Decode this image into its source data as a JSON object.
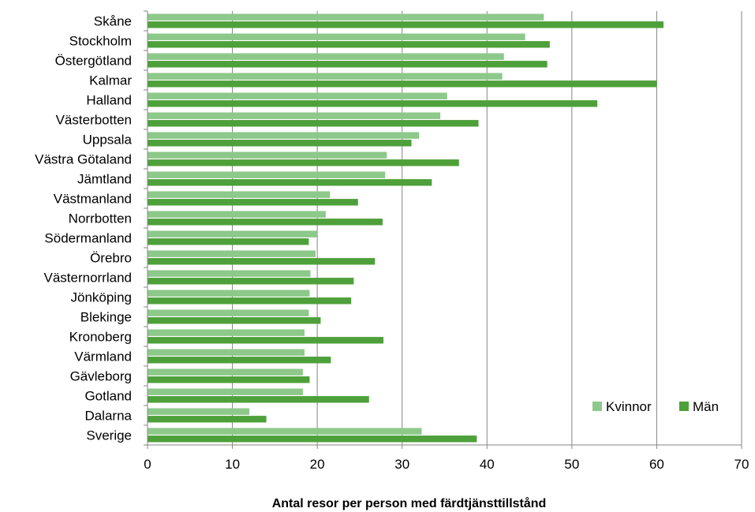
{
  "chart_data": {
    "type": "bar",
    "orientation": "horizontal",
    "title": "",
    "xlabel": "Antal resor per person med färdtjänsttillstånd",
    "ylabel": "",
    "xlim": [
      0,
      70
    ],
    "xticks": [
      0,
      10,
      20,
      30,
      40,
      50,
      60,
      70
    ],
    "grid": true,
    "legend_position": "bottom-right",
    "categories": [
      "Skåne",
      "Stockholm",
      "Östergötland",
      "Kalmar",
      "Halland",
      "Västerbotten",
      "Uppsala",
      "Västra Götaland",
      "Jämtland",
      "Västmanland",
      "Norrbotten",
      "Södermanland",
      "Örebro",
      "Västernorrland",
      "Jönköping",
      "Blekinge",
      "Kronoberg",
      "Värmland",
      "Gävleborg",
      "Gotland",
      "Dalarna",
      "Sverige"
    ],
    "series": [
      {
        "name": "Kvinnor",
        "color": "#8dc98a",
        "values": [
          46.7,
          44.5,
          42.0,
          41.8,
          35.3,
          34.5,
          32.0,
          28.2,
          28.0,
          21.5,
          21.0,
          20.0,
          19.8,
          19.2,
          19.1,
          19.0,
          18.5,
          18.5,
          18.3,
          18.3,
          12.0,
          32.3
        ]
      },
      {
        "name": "Män",
        "color": "#4ea03a",
        "values": [
          60.8,
          47.4,
          47.1,
          60.0,
          53.0,
          39.0,
          31.1,
          36.7,
          33.5,
          24.8,
          27.7,
          19.0,
          26.8,
          24.3,
          24.0,
          20.4,
          27.8,
          21.6,
          19.1,
          26.1,
          14.0,
          38.8
        ]
      }
    ]
  }
}
